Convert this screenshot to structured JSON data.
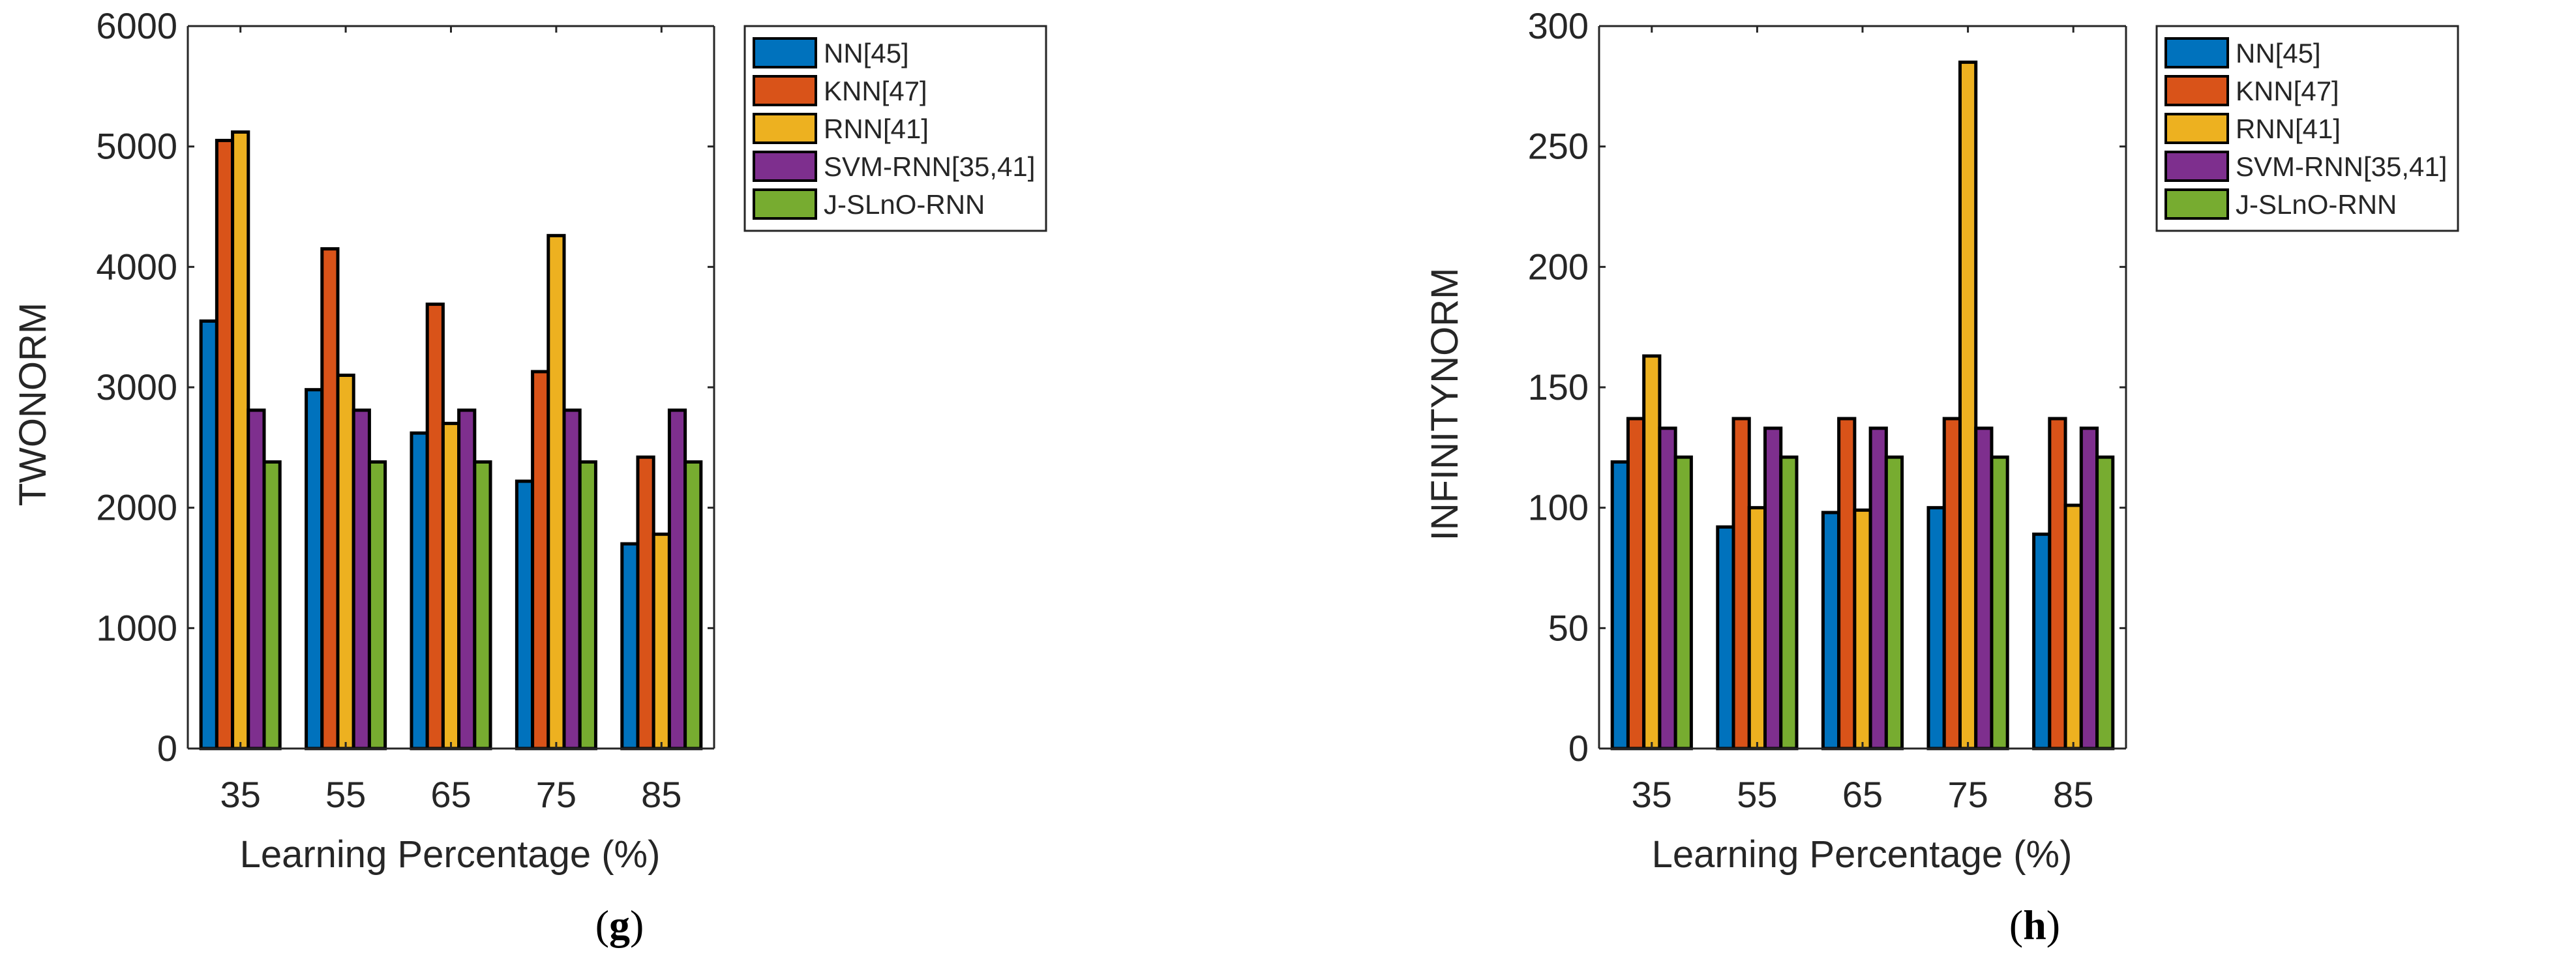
{
  "colors": {
    "series": [
      "#0072BD",
      "#D95319",
      "#EDB120",
      "#7E2F8E",
      "#77AC30"
    ],
    "axis": "#262626",
    "bar_edge": "#000000"
  },
  "chart_data": [
    {
      "type": "bar",
      "panel": "g",
      "panel_label": {
        "open": "(",
        "letter": "g",
        "close": ")"
      },
      "title": "",
      "xlabel": "Learning Percentage (%)",
      "ylabel": "TWONORM",
      "categories": [
        "35",
        "55",
        "65",
        "75",
        "85"
      ],
      "ylim": [
        0,
        6000
      ],
      "yticks": [
        "0",
        "1000",
        "2000",
        "3000",
        "4000",
        "5000",
        "6000"
      ],
      "legend_position": "outside-right-top",
      "series": [
        {
          "name": "NN[45]",
          "values": [
            3550,
            2980,
            2620,
            2220,
            1700
          ]
        },
        {
          "name": "KNN[47]",
          "values": [
            5050,
            4150,
            3690,
            3130,
            2420
          ]
        },
        {
          "name": "RNN[41]",
          "values": [
            5120,
            3100,
            2700,
            4260,
            1780
          ]
        },
        {
          "name": "SVM-RNN[35,41]",
          "values": [
            2810,
            2810,
            2810,
            2810,
            2810
          ]
        },
        {
          "name": "J-SLnO-RNN",
          "values": [
            2380,
            2380,
            2380,
            2380,
            2380
          ]
        }
      ]
    },
    {
      "type": "bar",
      "panel": "h",
      "panel_label": {
        "open": "(",
        "letter": "h",
        "close": ")"
      },
      "title": "",
      "xlabel": "Learning Percentage (%)",
      "ylabel": "INFINITYNORM",
      "categories": [
        "35",
        "55",
        "65",
        "75",
        "85"
      ],
      "ylim": [
        0,
        300
      ],
      "yticks": [
        "0",
        "50",
        "100",
        "150",
        "200",
        "250",
        "300"
      ],
      "legend_position": "outside-right-top",
      "series": [
        {
          "name": "NN[45]",
          "values": [
            119,
            92,
            98,
            100,
            89
          ]
        },
        {
          "name": "KNN[47]",
          "values": [
            137,
            137,
            137,
            137,
            137
          ]
        },
        {
          "name": "RNN[41]",
          "values": [
            163,
            100,
            99,
            285,
            101
          ]
        },
        {
          "name": "SVM-RNN[35,41]",
          "values": [
            133,
            133,
            133,
            133,
            133
          ]
        },
        {
          "name": "J-SLnO-RNN",
          "values": [
            121,
            121,
            121,
            121,
            121
          ]
        }
      ]
    }
  ]
}
